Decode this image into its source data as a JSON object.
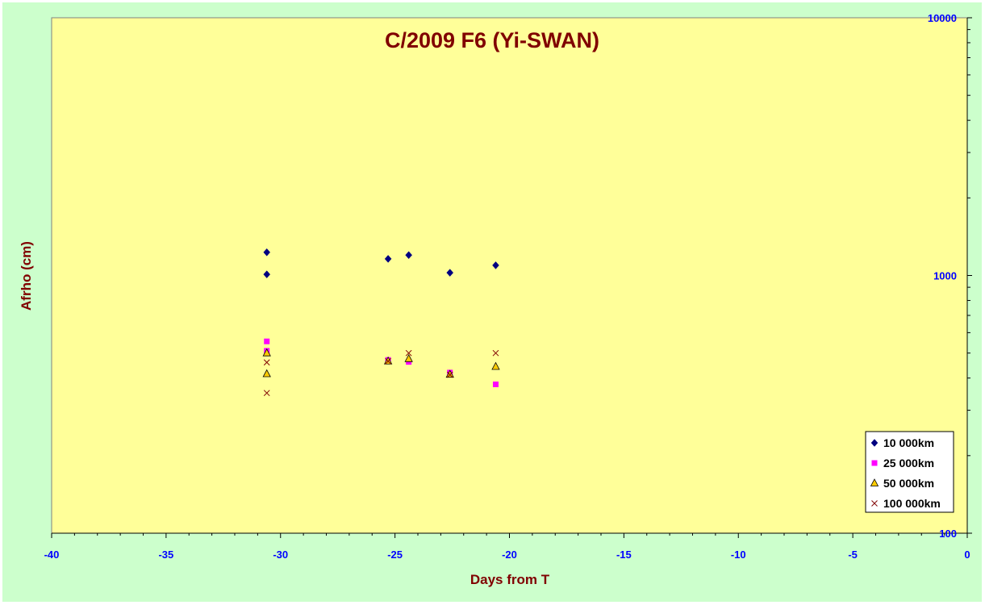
{
  "chart_data": {
    "type": "scatter",
    "title": "C/2009 F6 (Yi-SWAN)",
    "xlabel": "Days from T",
    "ylabel": "Afrho (cm)",
    "xlim": [
      -40,
      0
    ],
    "ylim": [
      100,
      10000
    ],
    "yscale": "log",
    "xticks": [
      "-40",
      "-35",
      "-30",
      "-25",
      "-20",
      "-15",
      "-10",
      "-5",
      "0"
    ],
    "yticks": [
      "100",
      "1000",
      "10000"
    ],
    "legend_position": "bottom-right",
    "series": [
      {
        "name": "10 000km",
        "marker": "diamond",
        "color": "#000080",
        "points": [
          [
            -30.6,
            1230
          ],
          [
            -30.6,
            1010
          ],
          [
            -25.3,
            1160
          ],
          [
            -24.4,
            1200
          ],
          [
            -22.6,
            1025
          ],
          [
            -20.6,
            1095
          ]
        ]
      },
      {
        "name": "25 000km",
        "marker": "square",
        "color": "#ff00ff",
        "points": [
          [
            -30.6,
            555
          ],
          [
            -30.6,
            510
          ],
          [
            -25.3,
            470
          ],
          [
            -24.4,
            462
          ],
          [
            -22.6,
            420
          ],
          [
            -20.6,
            378
          ]
        ]
      },
      {
        "name": "50 000km",
        "marker": "triangle",
        "color": "#ffcc00",
        "points": [
          [
            -30.6,
            500
          ],
          [
            -30.6,
            415
          ],
          [
            -25.3,
            465
          ],
          [
            -24.4,
            475
          ],
          [
            -22.6,
            413
          ],
          [
            -20.6,
            443
          ]
        ]
      },
      {
        "name": "100 000km",
        "marker": "cross",
        "color": "#800000",
        "points": [
          [
            -30.6,
            460
          ],
          [
            -30.6,
            350
          ],
          [
            -25.3,
            465
          ],
          [
            -24.4,
            500
          ],
          [
            -22.6,
            412
          ],
          [
            -20.6,
            500
          ]
        ]
      }
    ]
  }
}
